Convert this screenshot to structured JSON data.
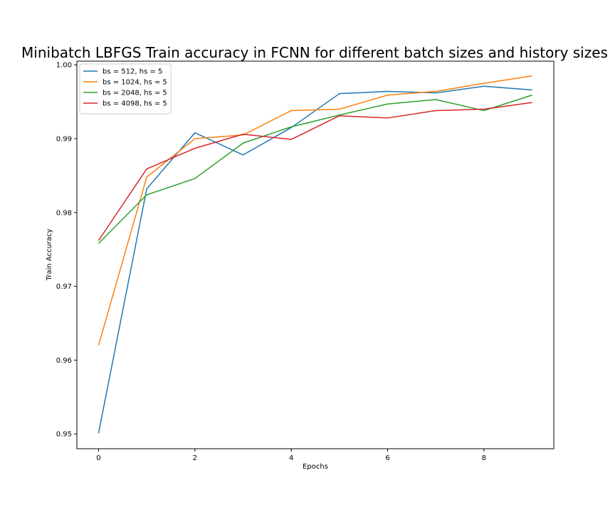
{
  "chart_data": {
    "type": "line",
    "title": "Minibatch LBFGS Train accuracy in FCNN for different batch sizes and history sizes",
    "xlabel": "Epochs",
    "ylabel": "Train Accuracy",
    "xlim": [
      -0.45,
      9.45
    ],
    "ylim": [
      0.948,
      1.0005
    ],
    "xticks": [
      0,
      2,
      4,
      6,
      8
    ],
    "xtick_labels": [
      "0",
      "2",
      "4",
      "6",
      "8"
    ],
    "yticks": [
      0.95,
      0.96,
      0.97,
      0.98,
      0.99,
      1.0
    ],
    "ytick_labels": [
      "0.95",
      "0.96",
      "0.97",
      "0.98",
      "0.99",
      "1.00"
    ],
    "grid": false,
    "legend_position": "top-left",
    "x": [
      0,
      1,
      2,
      3,
      4,
      5,
      6,
      7,
      8,
      9
    ],
    "series": [
      {
        "name": "bs = 512, hs = 5",
        "color": "#1f77b4",
        "values": [
          0.9501,
          0.9832,
          0.9908,
          0.9878,
          0.9915,
          0.9961,
          0.9964,
          0.9962,
          0.9971,
          0.9966
        ]
      },
      {
        "name": "bs = 1024, hs = 5",
        "color": "#ff7f0e",
        "values": [
          0.962,
          0.9848,
          0.99,
          0.9905,
          0.9938,
          0.994,
          0.9959,
          0.9964,
          0.9975,
          0.9985
        ]
      },
      {
        "name": "bs = 2048, hs = 5",
        "color": "#2ca02c",
        "values": [
          0.9758,
          0.9824,
          0.9846,
          0.9894,
          0.9916,
          0.9932,
          0.9947,
          0.9953,
          0.9938,
          0.9959
        ]
      },
      {
        "name": "bs = 4098, hs = 5",
        "color": "#d62728",
        "values": [
          0.9762,
          0.9859,
          0.9887,
          0.9906,
          0.9899,
          0.9931,
          0.9928,
          0.9938,
          0.994,
          0.9949
        ]
      }
    ]
  }
}
